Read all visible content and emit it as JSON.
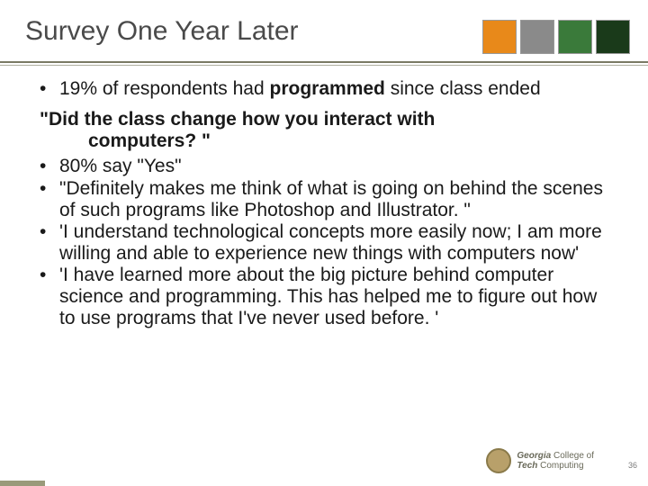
{
  "title": "Survey One Year Later",
  "logo_colors": [
    "#e8891a",
    "#8a8a8a",
    "#3a7a3a",
    "#1a3a1a"
  ],
  "intro_bullet_pre": "19% of respondents had ",
  "intro_bullet_bold": "programmed",
  "intro_bullet_post": " since class ended",
  "question_l1": "\"Did the class change how you interact with",
  "question_l2": "computers? \"",
  "bullets": [
    "80% say \"Yes\"",
    "\"Definitely makes me think of what is going on behind the scenes of such programs like Photoshop and Illustrator. \"",
    "'I understand technological concepts more easily now; I am more willing and able to experience new things with computers now'",
    "'I have learned more about the big picture behind computer science and programming.  This has helped me to figure out how to use programs that I've never used before. '"
  ],
  "footer": {
    "org1": "Georgia",
    "org2": "Tech",
    "org3": "College of",
    "org4": "Computing"
  },
  "page_number": "36"
}
